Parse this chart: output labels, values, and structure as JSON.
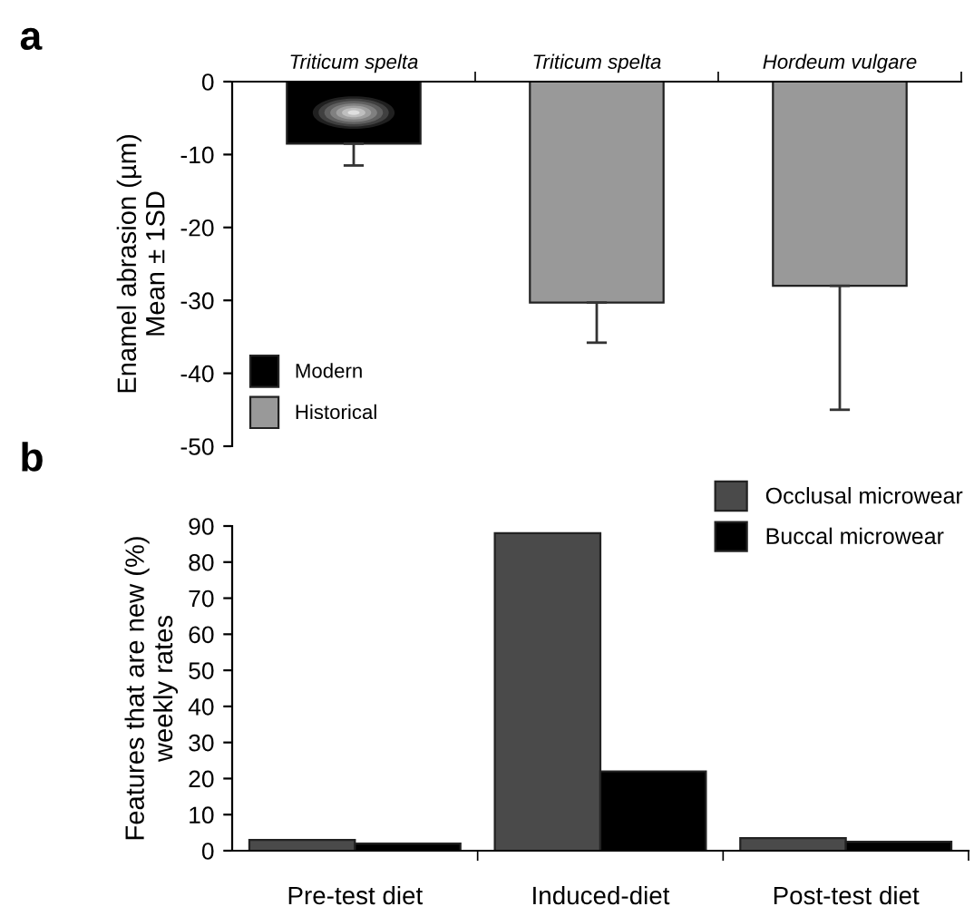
{
  "chart_data": [
    {
      "type": "bar",
      "title": "a",
      "ylabel": "Enamel abrasion (µm)\nMean ± 1SD",
      "categories": [
        "Triticum spelta",
        "Triticum spelta",
        "Hordeum vulgare"
      ],
      "ylim": [
        -50,
        0
      ],
      "yticks": [
        -50,
        -40,
        -30,
        -20,
        -10,
        0
      ],
      "legend": "bottom left",
      "grid": false,
      "series": [
        {
          "name": "Modern",
          "color": "#000000",
          "values": [
            -8.5,
            null,
            null
          ],
          "errors": [
            [
              -11.5,
              -8.5
            ],
            null,
            null
          ]
        },
        {
          "name": "Historical",
          "color": "#999999",
          "values": [
            null,
            -30.3,
            -28
          ],
          "errors": [
            null,
            [
              -35.8,
              -30.3
            ],
            [
              -45,
              -28
            ]
          ]
        }
      ]
    },
    {
      "type": "bar",
      "title": "b",
      "ylabel": "Features that are new (%)\nweekly rates",
      "categories": [
        "Pre-test diet",
        "Induced-diet",
        "Post-test diet"
      ],
      "ylim": [
        0,
        90
      ],
      "yticks": [
        0,
        10,
        20,
        30,
        40,
        50,
        60,
        70,
        80,
        90
      ],
      "legend": "top right",
      "grid": false,
      "series": [
        {
          "name": "Occlusal microwear",
          "color": "#4a4a4a",
          "values": [
            3,
            88,
            3.5
          ]
        },
        {
          "name": "Buccal microwear",
          "color": "#000000",
          "values": [
            2,
            22,
            2.5
          ]
        }
      ]
    }
  ]
}
